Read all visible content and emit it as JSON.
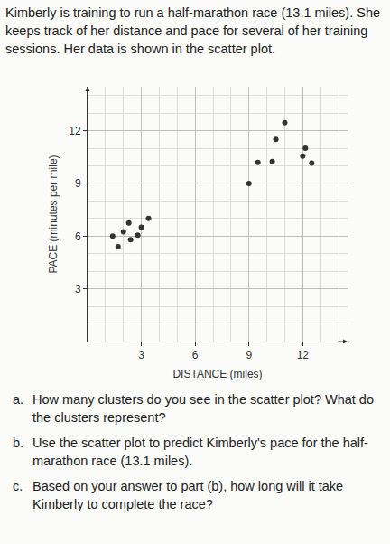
{
  "intro": "Kimberly is training to run a half-marathon race (13.1 miles). She keeps track of her distance and pace for several of her training sessions. Her data is shown in the scatter plot.",
  "chart_data": {
    "type": "scatter",
    "x": [
      1.4,
      1.7,
      2.0,
      2.3,
      2.4,
      2.8,
      3.0,
      3.4,
      9.0,
      9.5,
      10.3,
      10.5,
      11.0,
      12.0,
      12.15,
      12.5
    ],
    "values": [
      6.0,
      5.4,
      6.25,
      6.75,
      5.8,
      6.05,
      6.5,
      7.0,
      9.0,
      10.2,
      10.25,
      11.5,
      12.45,
      10.55,
      11.0,
      10.15
    ],
    "x_label": "DISTANCE (miles)",
    "y_label": "PACE (minutes per mile)",
    "xlim": [
      0,
      14.5
    ],
    "ylim": [
      0,
      14.5
    ],
    "xticks": [
      3,
      6,
      9,
      12
    ],
    "yticks": [
      3,
      6,
      9,
      12
    ],
    "grid": true,
    "color": "#333333",
    "marker": "circle"
  },
  "questions": [
    {
      "label": "a.",
      "text": "How many clusters do you see in the scatter plot? What do the clusters represent?"
    },
    {
      "label": "b.",
      "text": "Use the scatter plot to predict Kimberly's pace for the half-marathon race (13.1 miles)."
    },
    {
      "label": "c.",
      "text": "Based on your answer to part (b), how long will it take Kimberly to complete the race?"
    }
  ]
}
